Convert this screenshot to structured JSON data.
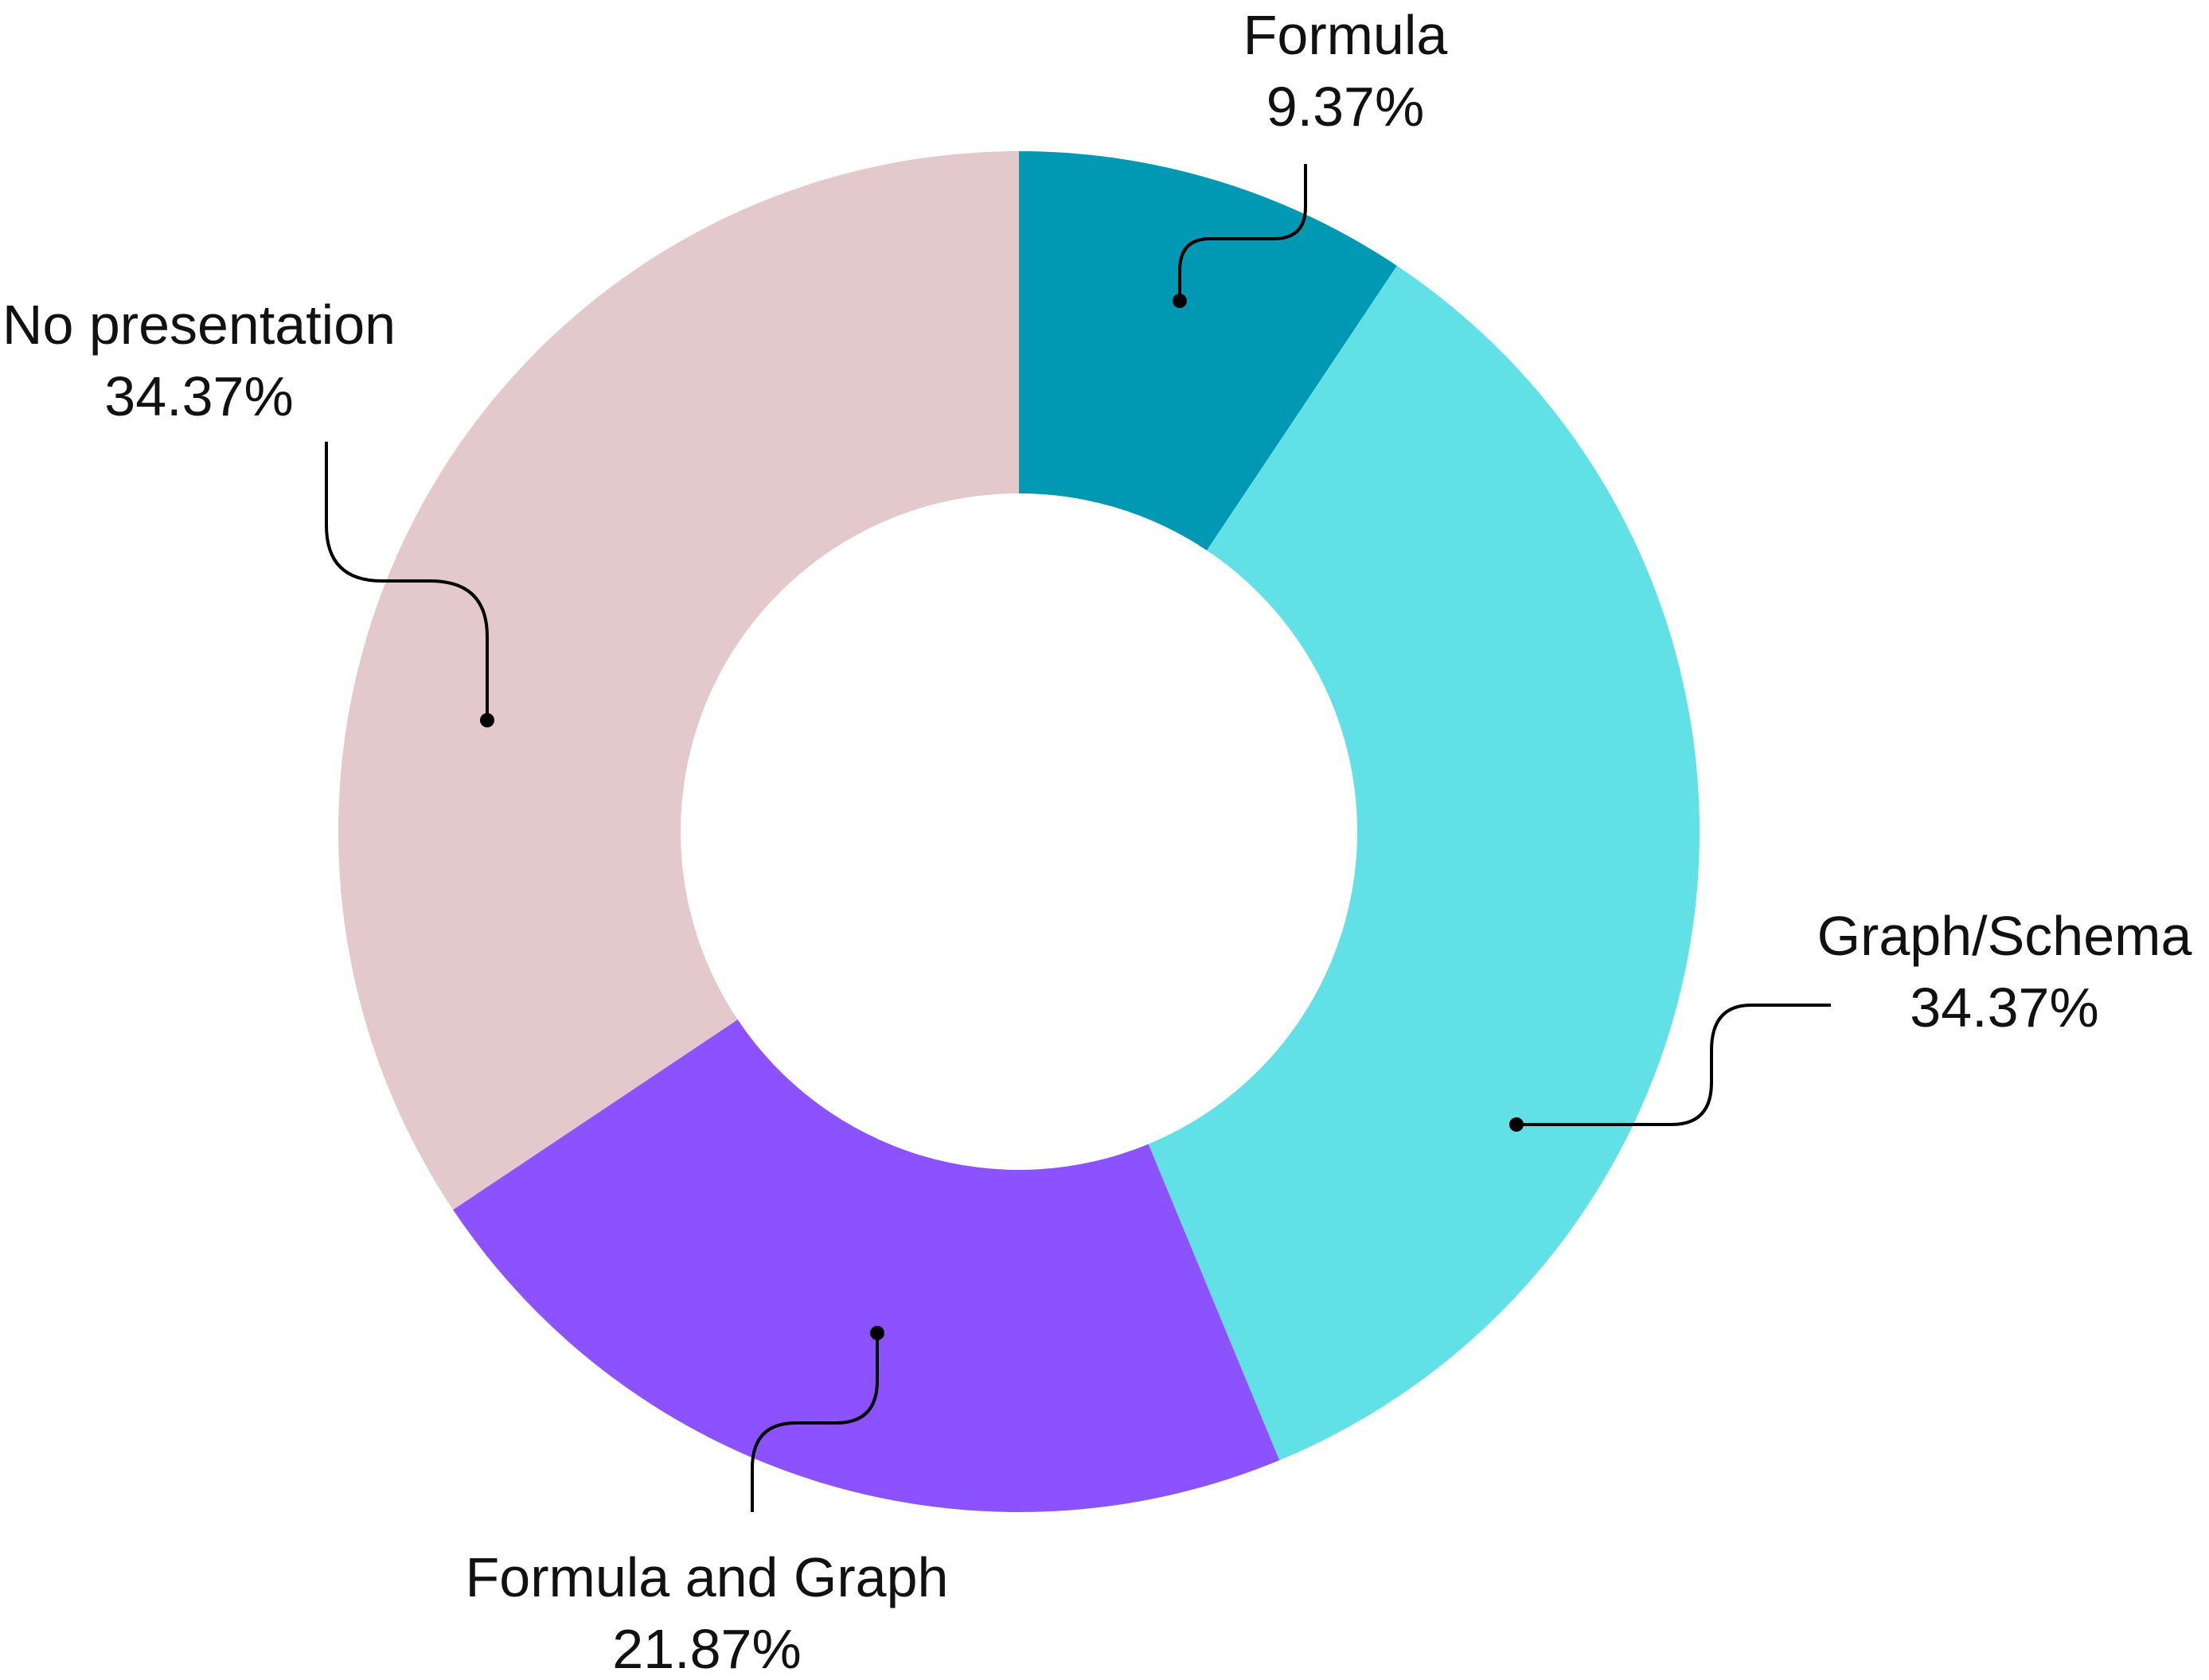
{
  "chart_data": {
    "type": "pie",
    "variant": "donut",
    "title": "",
    "start_angle_deg": 0,
    "direction": "clockwise",
    "slices": [
      {
        "label": "Formula",
        "percent_label": "9.37%",
        "value": 9.37,
        "color": "#0098B3"
      },
      {
        "label": "Graph/Schema",
        "percent_label": "34.37%",
        "value": 34.37,
        "color": "#61E1E6"
      },
      {
        "label": "Formula and Graph",
        "percent_label": "21.87%",
        "value": 21.87,
        "color": "#8C52FF"
      },
      {
        "label": "No presentation",
        "percent_label": "34.37%",
        "value": 34.37,
        "color": "#E3C8CC"
      }
    ],
    "legend": "none",
    "labels": "outside with leader lines"
  }
}
